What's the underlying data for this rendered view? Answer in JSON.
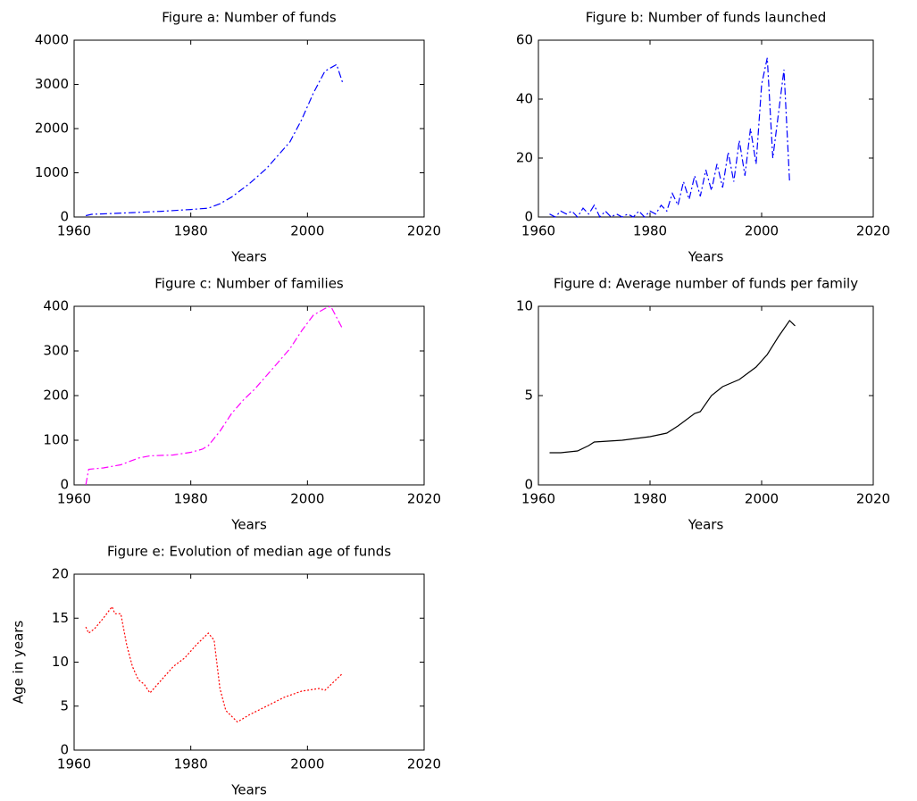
{
  "chart_data": [
    {
      "type": "line",
      "title": "Figure a: Number of funds",
      "x_label": "Years",
      "xlim": [
        1960,
        2020
      ],
      "xticks": [
        1960,
        1980,
        2000,
        2020
      ],
      "ylim": [
        0,
        4000
      ],
      "yticks": [
        0,
        1000,
        2000,
        3000,
        4000
      ],
      "line_style": "dash-dot",
      "series": [
        {
          "color": "#0000ff",
          "x": [
            1962,
            1963,
            1965,
            1970,
            1975,
            1980,
            1983,
            1985,
            1987,
            1990,
            1993,
            1995,
            1997,
            1999,
            2001,
            2003,
            2005,
            2006
          ],
          "values": [
            30,
            60,
            70,
            100,
            130,
            170,
            200,
            300,
            450,
            750,
            1100,
            1400,
            1700,
            2200,
            2800,
            3300,
            3450,
            3050
          ]
        }
      ]
    },
    {
      "type": "line",
      "title": "Figure b: Number of funds launched",
      "x_label": "Years",
      "xlim": [
        1960,
        2020
      ],
      "xticks": [
        1960,
        1980,
        2000,
        2020
      ],
      "ylim": [
        0,
        60
      ],
      "yticks": [
        0,
        20,
        40,
        60
      ],
      "line_style": "dash-dot",
      "series": [
        {
          "color": "#0000ff",
          "x": [
            1962,
            1963,
            1964,
            1965,
            1966,
            1967,
            1968,
            1969,
            1970,
            1971,
            1972,
            1973,
            1974,
            1975,
            1976,
            1977,
            1978,
            1979,
            1980,
            1981,
            1982,
            1983,
            1984,
            1985,
            1986,
            1987,
            1988,
            1989,
            1990,
            1991,
            1992,
            1993,
            1994,
            1995,
            1996,
            1997,
            1998,
            1999,
            2000,
            2001,
            2002,
            2003,
            2004,
            2005
          ],
          "values": [
            1,
            0,
            2,
            1,
            2,
            0,
            3,
            1,
            4,
            0,
            2,
            0,
            1,
            0,
            1,
            0,
            2,
            0,
            2,
            1,
            4,
            2,
            8,
            4,
            12,
            6,
            14,
            7,
            16,
            9,
            18,
            10,
            22,
            12,
            26,
            14,
            30,
            18,
            45,
            54,
            20,
            35,
            50,
            12
          ]
        }
      ]
    },
    {
      "type": "line",
      "title": "Figure c: Number of families",
      "x_label": "Years",
      "xlim": [
        1960,
        2020
      ],
      "xticks": [
        1960,
        1980,
        2000,
        2020
      ],
      "ylim": [
        0,
        400
      ],
      "yticks": [
        0,
        100,
        200,
        300,
        400
      ],
      "line_style": "dash-dot",
      "series": [
        {
          "color": "#ff00ff",
          "x": [
            1962,
            1962.5,
            1965,
            1968,
            1971,
            1973,
            1977,
            1980,
            1982,
            1983,
            1985,
            1987,
            1989,
            1991,
            1993,
            1995,
            1997,
            1999,
            2001,
            2003,
            2004,
            2005,
            2006
          ],
          "values": [
            0,
            35,
            38,
            45,
            60,
            65,
            67,
            73,
            80,
            88,
            120,
            160,
            190,
            215,
            245,
            275,
            305,
            345,
            380,
            395,
            400,
            375,
            350
          ]
        }
      ]
    },
    {
      "type": "line",
      "title": "Figure d: Average number of funds per family",
      "x_label": "Years",
      "xlim": [
        1960,
        2020
      ],
      "xticks": [
        1960,
        1980,
        2000,
        2020
      ],
      "ylim": [
        0,
        10
      ],
      "yticks": [
        0,
        5,
        10
      ],
      "line_style": "solid",
      "series": [
        {
          "color": "#000000",
          "x": [
            1962,
            1964,
            1967,
            1969,
            1970,
            1975,
            1980,
            1983,
            1985,
            1988,
            1989,
            1991,
            1993,
            1996,
            1999,
            2001,
            2003,
            2005,
            2006
          ],
          "values": [
            1.8,
            1.8,
            1.9,
            2.2,
            2.4,
            2.5,
            2.7,
            2.9,
            3.3,
            4.0,
            4.1,
            5.0,
            5.5,
            5.9,
            6.6,
            7.3,
            8.3,
            9.2,
            8.9
          ]
        }
      ]
    },
    {
      "type": "line",
      "title": "Figure e: Evolution of median age of funds",
      "x_label": "Years",
      "y_label": "Age in years",
      "xlim": [
        1960,
        2020
      ],
      "xticks": [
        1960,
        1980,
        2000,
        2020
      ],
      "ylim": [
        0,
        20
      ],
      "yticks": [
        0,
        5,
        10,
        15,
        20
      ],
      "line_style": "dotted",
      "series": [
        {
          "color": "#ff0000",
          "x": [
            1962,
            1962.5,
            1963.5,
            1965,
            1966.5,
            1967,
            1968,
            1969,
            1970,
            1971,
            1972,
            1973,
            1975,
            1977,
            1979,
            1981,
            1983,
            1984,
            1985,
            1986,
            1988,
            1990,
            1993,
            1996,
            1999,
            2002,
            2003,
            2006
          ],
          "values": [
            14,
            13.3,
            13.8,
            15,
            16.3,
            15.5,
            15.5,
            12,
            9.5,
            8,
            7.5,
            6.5,
            8,
            9.5,
            10.5,
            12,
            13.3,
            12.5,
            7,
            4.5,
            3.2,
            4,
            5,
            6,
            6.7,
            7,
            6.8,
            8.7
          ]
        }
      ]
    }
  ]
}
